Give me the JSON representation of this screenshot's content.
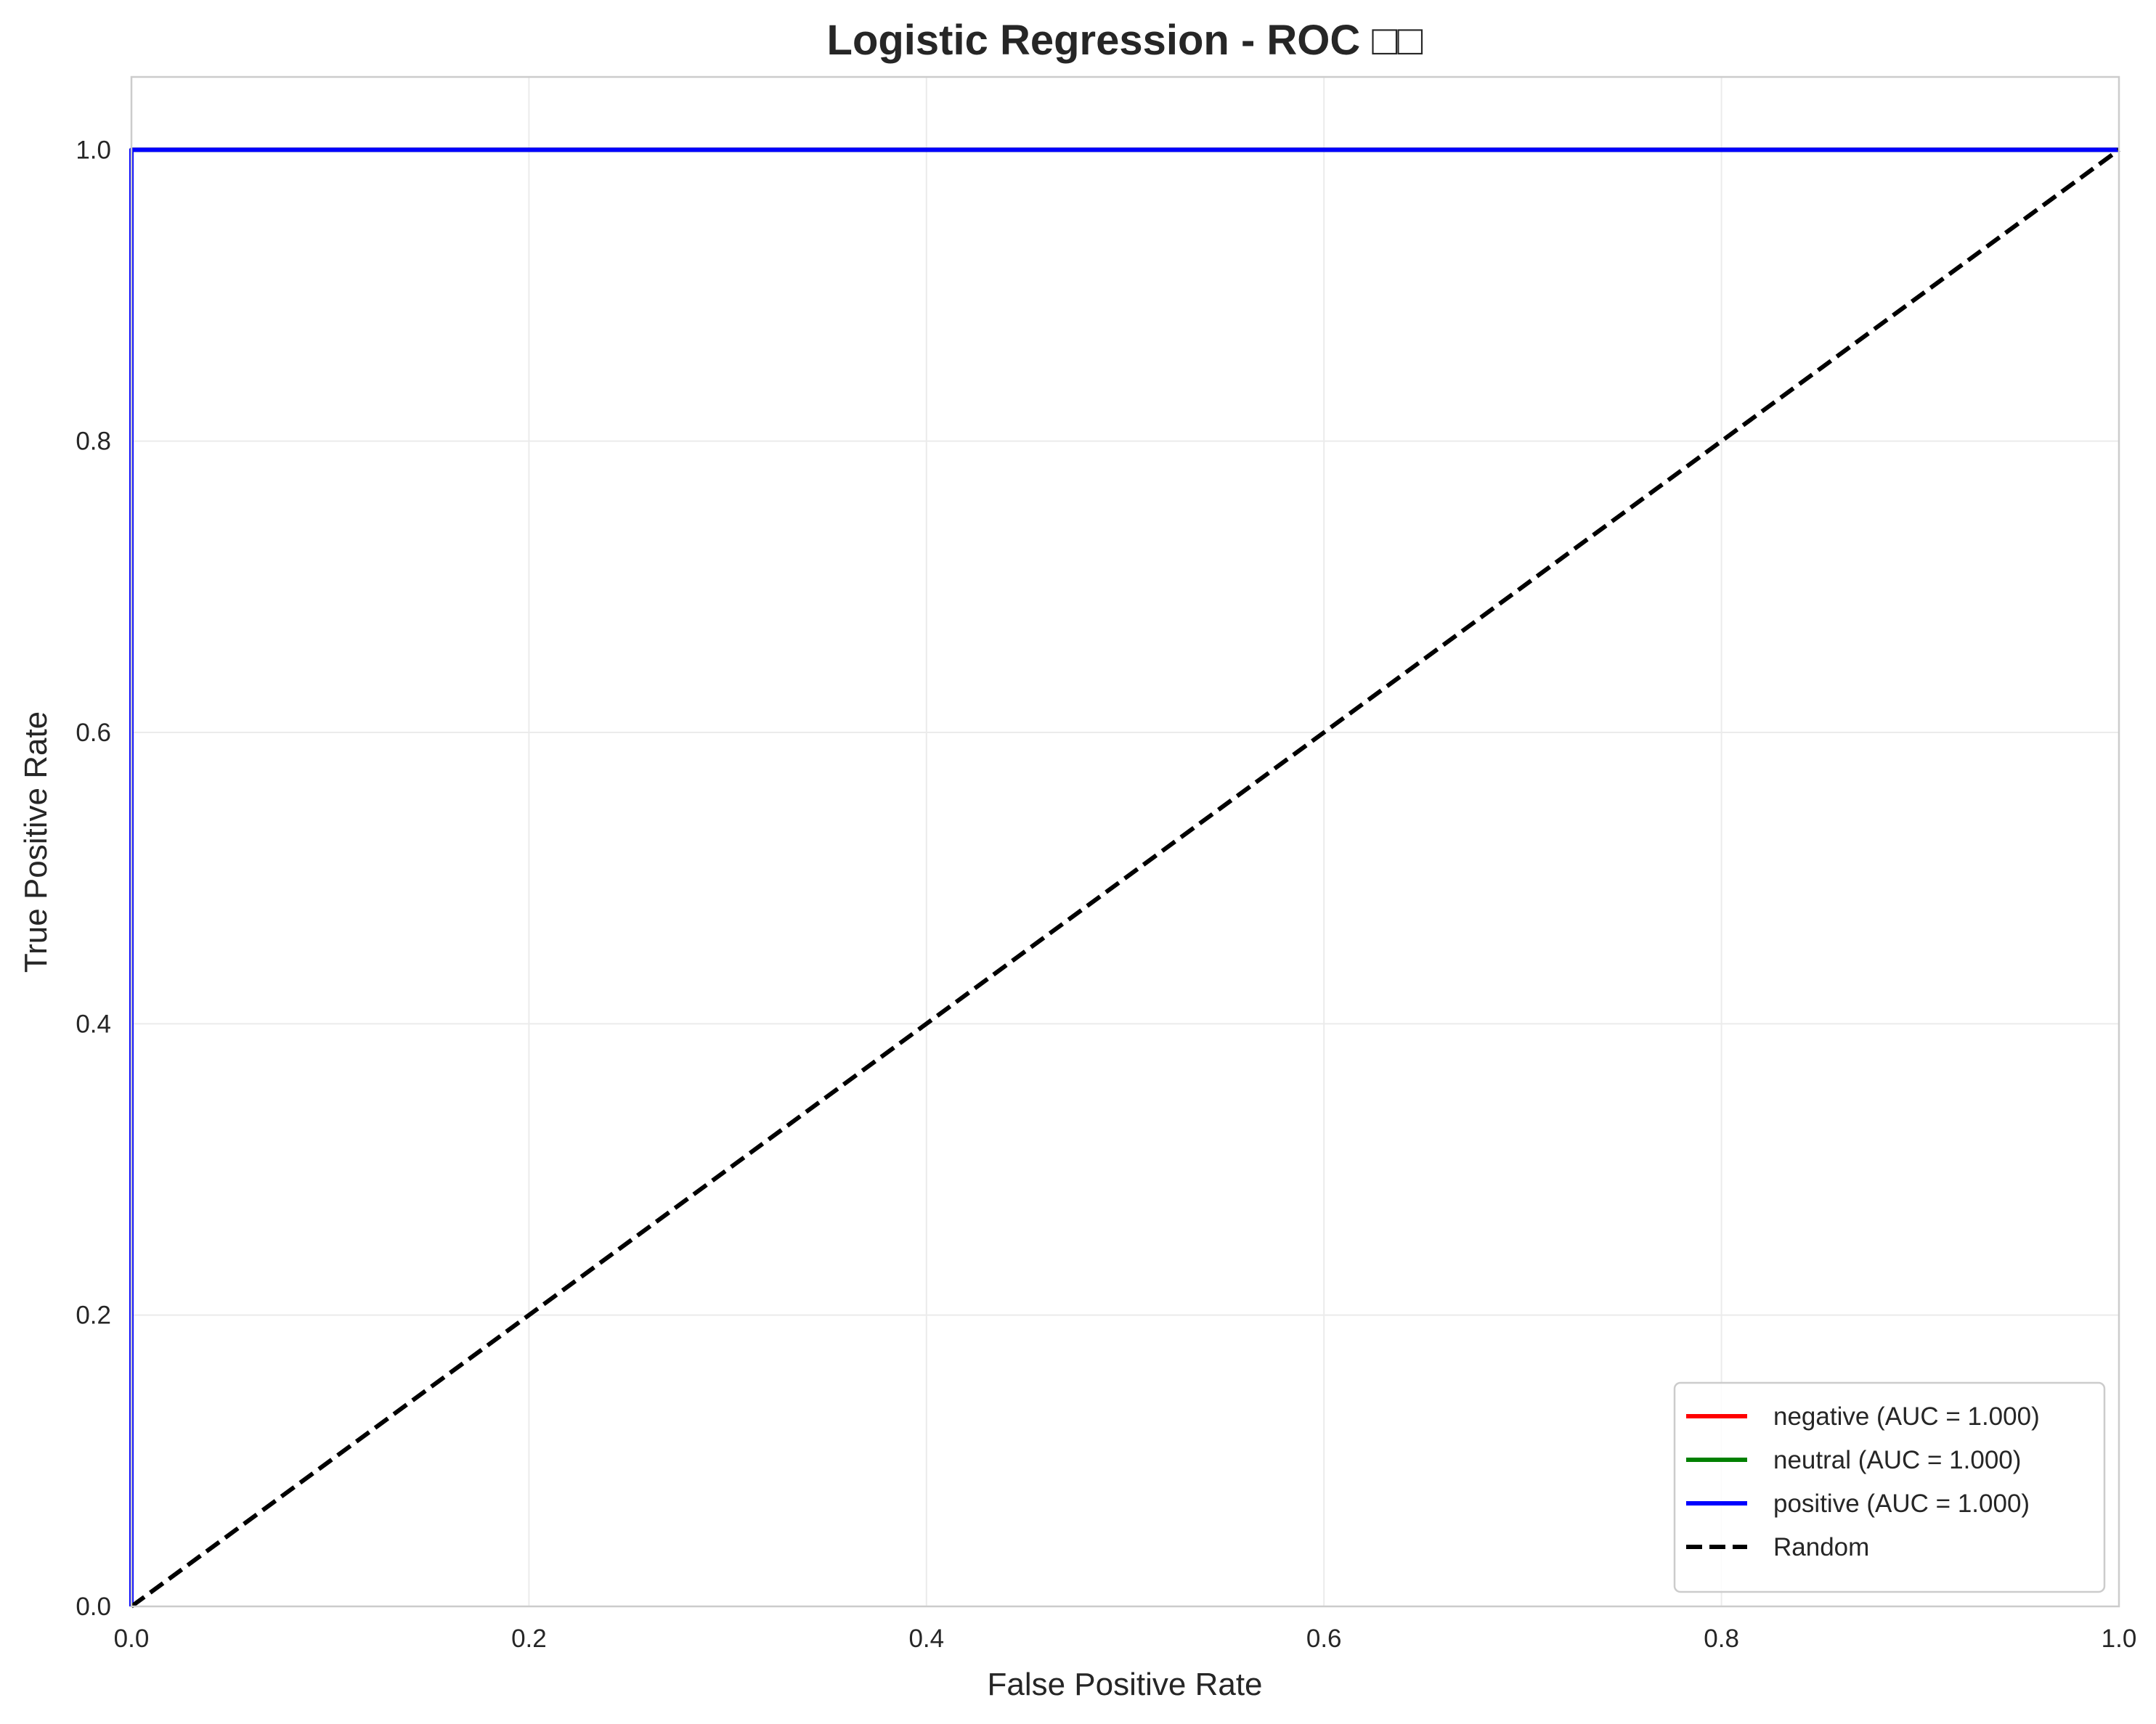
{
  "chart_data": {
    "type": "line",
    "title": "Logistic Regression - ROC □□",
    "xlabel": "False Positive Rate",
    "ylabel": "True Positive Rate",
    "xlim": [
      0.0,
      1.0
    ],
    "ylim": [
      0.0,
      1.05
    ],
    "xticks": [
      0.0,
      0.2,
      0.4,
      0.6,
      0.8,
      1.0
    ],
    "yticks": [
      0.0,
      0.2,
      0.4,
      0.6,
      0.8,
      1.0
    ],
    "xtick_labels": [
      "0.0",
      "0.2",
      "0.4",
      "0.6",
      "0.8",
      "1.0"
    ],
    "ytick_labels": [
      "0.0",
      "0.2",
      "0.4",
      "0.6",
      "0.8",
      "1.0"
    ],
    "grid": true,
    "legend_position": "bottom-right",
    "series": [
      {
        "name": "negative (AUC = 1.000)",
        "color": "#ff0000",
        "dash": false,
        "x": [
          0.0,
          0.0,
          1.0
        ],
        "y": [
          0.0,
          1.0,
          1.0
        ]
      },
      {
        "name": "neutral (AUC = 1.000)",
        "color": "#008000",
        "dash": false,
        "x": [
          0.0,
          0.0,
          1.0
        ],
        "y": [
          0.0,
          1.0,
          1.0
        ]
      },
      {
        "name": "positive (AUC = 1.000)",
        "color": "#0000ff",
        "dash": false,
        "x": [
          0.0,
          0.0,
          1.0
        ],
        "y": [
          0.0,
          1.0,
          1.0
        ]
      },
      {
        "name": "Random",
        "color": "#000000",
        "dash": true,
        "x": [
          0.0,
          1.0
        ],
        "y": [
          0.0,
          1.0
        ]
      }
    ]
  }
}
